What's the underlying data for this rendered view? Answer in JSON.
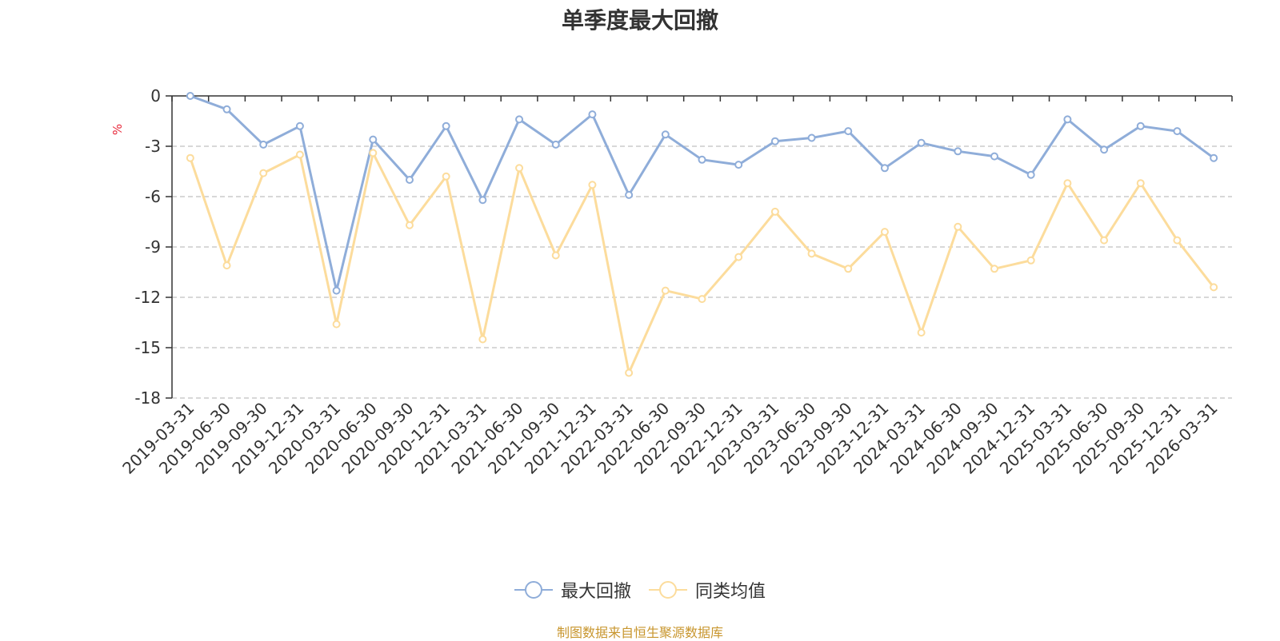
{
  "chart_data": {
    "type": "line",
    "title": "单季度最大回撤",
    "ylabel": "%",
    "xlabel": "",
    "ylim": [
      -18,
      0
    ],
    "yticks": [
      0,
      -3,
      -6,
      -9,
      -12,
      -15,
      -18
    ],
    "grid": true,
    "legend_position": "bottom",
    "categories": [
      "2019-03-31",
      "2019-06-30",
      "2019-09-30",
      "2019-12-31",
      "2020-03-31",
      "2020-06-30",
      "2020-09-30",
      "2020-12-31",
      "2021-03-31",
      "2021-06-30",
      "2021-09-30",
      "2021-12-31",
      "2022-03-31",
      "2022-06-30",
      "2022-09-30",
      "2022-12-31",
      "2023-03-31",
      "2023-06-30",
      "2023-09-30",
      "2023-12-31",
      "2024-03-31",
      "2024-06-30",
      "2024-09-30",
      "2024-12-31",
      "2025-03-31",
      "2025-06-30",
      "2025-09-30",
      "2025-12-31",
      "2026-03-31"
    ],
    "series": [
      {
        "name": "最大回撤",
        "color": "#8fadd9",
        "values": [
          0,
          -0.8,
          -2.9,
          -1.8,
          -11.6,
          -2.6,
          -5.0,
          -1.8,
          -6.2,
          -1.4,
          -2.9,
          -1.1,
          -5.9,
          -2.3,
          -3.8,
          -4.1,
          -2.7,
          -2.5,
          -2.1,
          -4.3,
          -2.8,
          -3.3,
          -3.6,
          -4.7,
          -1.4,
          -3.2,
          -1.8,
          -2.1,
          -3.7
        ]
      },
      {
        "name": "同类均值",
        "color": "#fcdc9c",
        "values": [
          -3.7,
          -10.1,
          -4.6,
          -3.5,
          -13.6,
          -3.4,
          -7.7,
          -4.8,
          -14.5,
          -4.3,
          -9.5,
          -5.3,
          -16.5,
          -11.6,
          -12.1,
          -9.6,
          -6.9,
          -9.4,
          -10.3,
          -8.1,
          -14.1,
          -7.8,
          -10.3,
          -9.8,
          -5.2,
          -8.6,
          -5.2,
          -8.6,
          -11.4
        ]
      }
    ]
  },
  "footer_text": "制图数据来自恒生聚源数据库"
}
